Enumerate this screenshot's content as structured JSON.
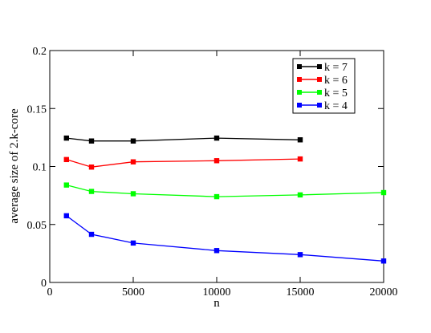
{
  "chart_data": {
    "type": "line",
    "title": "",
    "xlabel": "n",
    "ylabel": "average size of 2.k-core",
    "xlim": [
      0,
      20000
    ],
    "ylim": [
      0,
      0.2
    ],
    "xticks": [
      0,
      5000,
      10000,
      15000,
      20000
    ],
    "xtick_labels": [
      "0",
      "5000",
      "10000",
      "15000",
      "20000"
    ],
    "yticks": [
      0,
      0.05,
      0.1,
      0.15,
      0.2
    ],
    "ytick_labels": [
      "0",
      "0.05",
      "0.1",
      "0.15",
      "0.2"
    ],
    "grid": false,
    "legend_position": "top-right",
    "series": [
      {
        "name": "k = 7",
        "color": "#000000",
        "x": [
          1000,
          2500,
          5000,
          10000,
          15000
        ],
        "y": [
          0.1245,
          0.122,
          0.122,
          0.1245,
          0.123
        ]
      },
      {
        "name": "k = 6",
        "color": "#ff0000",
        "x": [
          1000,
          2500,
          5000,
          10000,
          15000
        ],
        "y": [
          0.106,
          0.0995,
          0.104,
          0.105,
          0.1065
        ]
      },
      {
        "name": "k = 5",
        "color": "#00ff00",
        "x": [
          1000,
          2500,
          5000,
          10000,
          15000,
          20000
        ],
        "y": [
          0.084,
          0.0785,
          0.0765,
          0.074,
          0.0755,
          0.0775
        ]
      },
      {
        "name": "k = 4",
        "color": "#0000ff",
        "x": [
          1000,
          2500,
          5000,
          10000,
          15000,
          20000
        ],
        "y": [
          0.0575,
          0.0415,
          0.034,
          0.0275,
          0.024,
          0.0185
        ]
      }
    ]
  }
}
